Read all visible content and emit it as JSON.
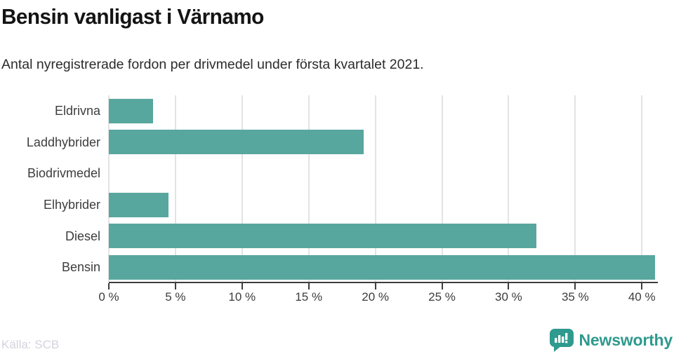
{
  "title": "Bensin vanligast i Värnamo",
  "subtitle": "Antal nyregistrerade fordon per drivmedel under första kvartalet 2021.",
  "source": "Källa: SCB",
  "brand": {
    "name": "Newsworthy",
    "color": "#2f9a8e",
    "icon": "newsworthy-speech-bubble-bar-chart-icon"
  },
  "colors": {
    "bar": "#58a79e",
    "grid": "#e3e3e3",
    "axis": "#3d3d3d",
    "tick_label": "#3d3d3d",
    "category_label": "#3d3d3d",
    "title": "#141414",
    "subtitle": "#2b2b2b",
    "source": "#d3d3dd"
  },
  "chart_data": {
    "type": "bar",
    "orientation": "horizontal",
    "title": "Bensin vanligast i Värnamo",
    "subtitle": "Antal nyregistrerade fordon per drivmedel under första kvartalet 2021.",
    "categories": [
      "Eldrivna",
      "Laddhybrider",
      "Biodrivmedel",
      "Elhybrider",
      "Diesel",
      "Bensin"
    ],
    "values": [
      3.3,
      19.1,
      0,
      4.5,
      32.1,
      41.0
    ],
    "unit": "%",
    "xlabel": "",
    "ylabel": "",
    "xlim": [
      0,
      41.2
    ],
    "xticks": [
      0,
      5,
      10,
      15,
      20,
      25,
      30,
      35,
      40
    ],
    "xtick_labels": [
      "0 %",
      "5 %",
      "10 %",
      "15 %",
      "20 %",
      "25 %",
      "30 %",
      "35 %",
      "40 %"
    ],
    "grid": true,
    "legend": "none"
  }
}
